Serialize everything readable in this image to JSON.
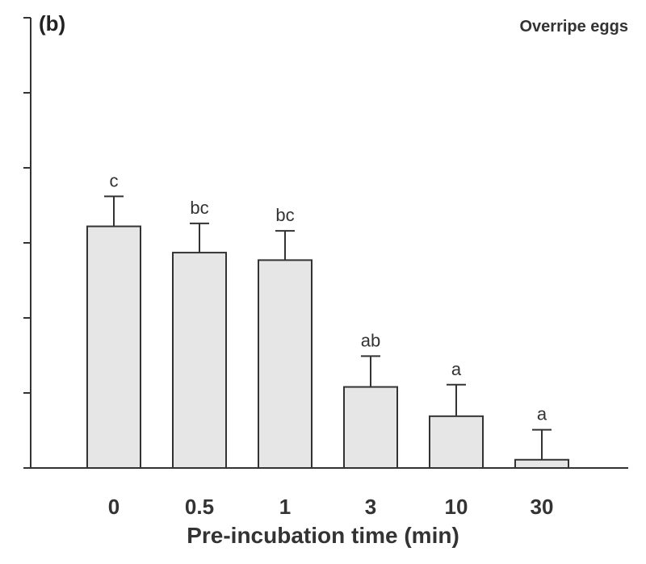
{
  "panel_label": "(b)",
  "subtitle": "Overripe eggs",
  "chart_data": {
    "type": "bar",
    "categories": [
      "0",
      "0.5",
      "1",
      "3",
      "10",
      "30"
    ],
    "values": [
      3.22,
      2.87,
      2.77,
      1.08,
      0.69,
      0.11
    ],
    "errors": [
      0.4,
      0.39,
      0.39,
      0.41,
      0.42,
      0.4
    ],
    "significance_letters": [
      "c",
      "bc",
      "bc",
      "ab",
      "a",
      "a"
    ],
    "xlabel": "Pre-incubation time (min)",
    "ylabel": "",
    "ylim": [
      0,
      6
    ],
    "y_tick_count": 6,
    "grid": false,
    "bar_color": "#e6e6e6",
    "edge_color": "#333333"
  }
}
